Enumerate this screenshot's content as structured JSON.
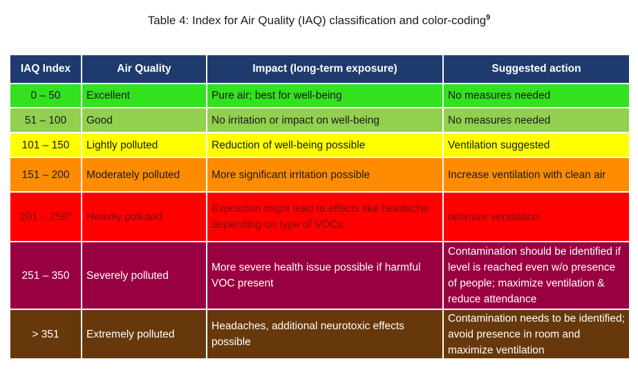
{
  "caption": {
    "text": "Table 4: Index for Air Quality (IAQ) classification and color-coding",
    "footnote": "9"
  },
  "table": {
    "headers": [
      "IAQ Index",
      "Air Quality",
      "Impact (long-term exposure)",
      "Suggested action"
    ],
    "rows": [
      {
        "index": "0 – 50",
        "index_note": "",
        "quality": "Excellent",
        "impact": "Pure air; best for well-being",
        "action": "No measures needed",
        "color": "#33e11f"
      },
      {
        "index": "51 – 100",
        "index_note": "",
        "quality": "Good",
        "impact": "No irritation or impact on well-being",
        "action": "No measures needed",
        "color": "#92d04f"
      },
      {
        "index": "101 – 150",
        "index_note": "",
        "quality": "Lightly polluted",
        "impact": "Reduction of well-being possible",
        "action": "Ventilation suggested",
        "color": "#ffff00"
      },
      {
        "index": "151 – 200",
        "index_note": "",
        "quality": "Moderately polluted",
        "impact": "More significant irritation possible",
        "action": "Increase ventilation with clean air",
        "color": "#ff8c00"
      },
      {
        "index": "201 – 250",
        "index_note": "9",
        "quality": "Heavily polluted",
        "impact": "Exposition might lead to effects like headache depending on type of VOCs",
        "action": "optimize ventilation",
        "color": "#ff0000"
      },
      {
        "index": "251 – 350",
        "index_note": "",
        "quality": "Severely polluted",
        "impact": "More severe health issue possible if harmful VOC present",
        "action": "Contamination should be identified if level is reached even w/o presence of people; maximize ventilation & reduce attendance",
        "color": "#990041"
      },
      {
        "index": "> 351",
        "index_note": "",
        "quality": "Extremely polluted",
        "impact": "Headaches, additional neurotoxic effects possible",
        "action": "Contamination needs to be identified; avoid presence in room and maximize ventilation",
        "color": "#66380b"
      }
    ]
  },
  "colors": {
    "header_bg": "#1f3a6c",
    "header_text": "#ffffff"
  }
}
